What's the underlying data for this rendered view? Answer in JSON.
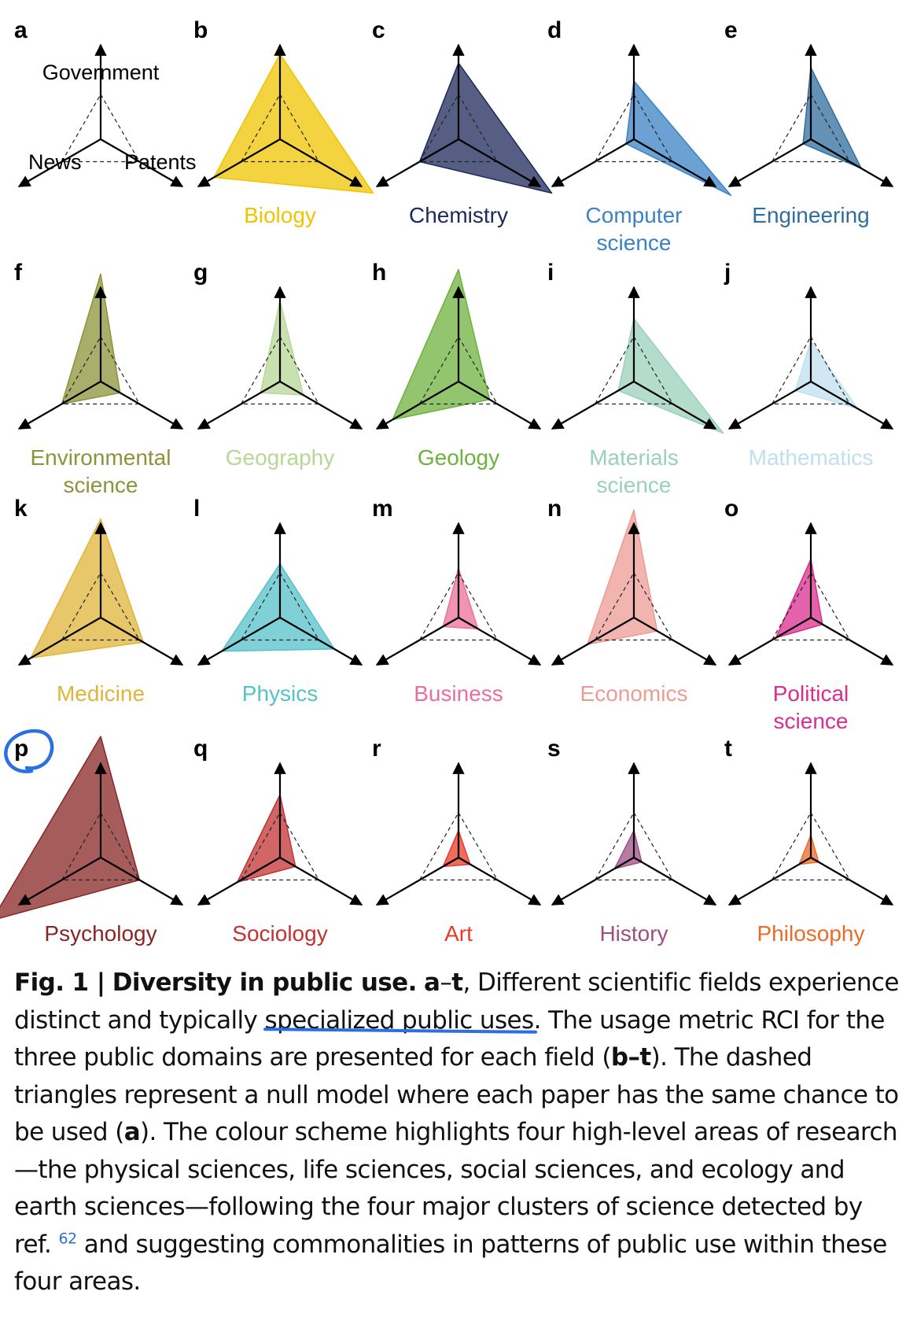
{
  "chart_data": {
    "type": "radar",
    "axes": [
      "Government",
      "Patents",
      "News"
    ],
    "null_model": {
      "government": 1,
      "patents": 1,
      "news": 1
    },
    "panels": [
      {
        "letter": "a",
        "field": "",
        "null_only": true
      },
      {
        "letter": "b",
        "field": "Biology",
        "color": "#f0c400",
        "values": {
          "government": 1.9,
          "patents": 2.4,
          "news": 1.7
        }
      },
      {
        "letter": "c",
        "field": "Chemistry",
        "color": "#1d2a5a",
        "values": {
          "government": 1.7,
          "patents": 2.4,
          "news": 1.0
        }
      },
      {
        "letter": "d",
        "field": "Computer\nscience",
        "color": "#3b82c4",
        "values": {
          "government": 1.3,
          "patents": 2.5,
          "news": 0.2
        }
      },
      {
        "letter": "e",
        "field": "Engineering",
        "color": "#2f6e9e",
        "values": {
          "government": 1.6,
          "patents": 1.3,
          "news": 0.2
        }
      },
      {
        "letter": "f",
        "field": "Environmental\nscience",
        "color": "#8c933a",
        "values": {
          "government": 2.4,
          "patents": 0.5,
          "news": 1.0
        }
      },
      {
        "letter": "g",
        "field": "Geography",
        "color": "#b7d796",
        "values": {
          "government": 1.8,
          "patents": 0.6,
          "news": 0.5
        }
      },
      {
        "letter": "h",
        "field": "Geology",
        "color": "#6db23c",
        "values": {
          "government": 2.5,
          "patents": 0.8,
          "news": 1.7
        }
      },
      {
        "letter": "i",
        "field": "Materials\nscience",
        "color": "#9ad0bb",
        "values": {
          "government": 1.4,
          "patents": 2.3,
          "news": 0.4
        }
      },
      {
        "letter": "j",
        "field": "Mathematics",
        "color": "#bfe0ef",
        "values": {
          "government": 0.9,
          "patents": 1.2,
          "news": 0.4
        }
      },
      {
        "letter": "k",
        "field": "Medicine",
        "color": "#e0b43a",
        "values": {
          "government": 2.2,
          "patents": 1.1,
          "news": 1.8
        }
      },
      {
        "letter": "l",
        "field": "Physics",
        "color": "#55c1c9",
        "values": {
          "government": 1.2,
          "patents": 1.4,
          "news": 1.5
        }
      },
      {
        "letter": "m",
        "field": "Business",
        "color": "#ec6f9a",
        "values": {
          "government": 1.1,
          "patents": 0.5,
          "news": 0.4
        }
      },
      {
        "letter": "n",
        "field": "Economics",
        "color": "#ee9b94",
        "values": {
          "government": 2.4,
          "patents": 0.6,
          "news": 1.2
        }
      },
      {
        "letter": "o",
        "field": "Political\nscience",
        "color": "#db2c90",
        "values": {
          "government": 1.3,
          "patents": 0.3,
          "news": 0.9
        }
      },
      {
        "letter": "p",
        "field": "Psychology",
        "color": "#8a2525",
        "values": {
          "government": 2.7,
          "patents": 1.0,
          "news": 2.8
        }
      },
      {
        "letter": "q",
        "field": "Sociology",
        "color": "#c33232",
        "values": {
          "government": 1.4,
          "patents": 0.4,
          "news": 1.1
        }
      },
      {
        "letter": "r",
        "field": "Art",
        "color": "#ea3b2a",
        "values": {
          "government": 0.6,
          "patents": 0.3,
          "news": 0.4
        }
      },
      {
        "letter": "s",
        "field": "History",
        "color": "#9c4f84",
        "values": {
          "government": 0.6,
          "patents": 0.2,
          "news": 0.5
        }
      },
      {
        "letter": "t",
        "field": "Philosophy",
        "color": "#ee6a2a",
        "values": {
          "government": 0.5,
          "patents": 0.2,
          "news": 0.3
        }
      }
    ],
    "axis_labels": {
      "top": "Government",
      "left": "News",
      "right": "Patents"
    }
  },
  "caption": {
    "fig": "Fig. 1 |",
    "title": "Diversity in public use.",
    "range_a": "a",
    "dash": "–",
    "range_t": "t",
    "p1": ", Different scientific fields experience distinct and typically ",
    "highlight": "specialized public uses",
    "p2": ". The usage metric RCI for the three public domains are presented for each field (",
    "bt": "b–t",
    "p3": "). The dashed triangles represent a null model where each paper has the same chance to be used (",
    "a_ref": "a",
    "p4": "). The colour scheme highlights four high-level areas of research—the physical sciences, life sciences, social sciences, and ecology and earth sciences—following the four major clusters of science detected by ref. ",
    "ref": "62",
    "p5": " and suggesting commonalities in patterns of public use within these four areas."
  }
}
